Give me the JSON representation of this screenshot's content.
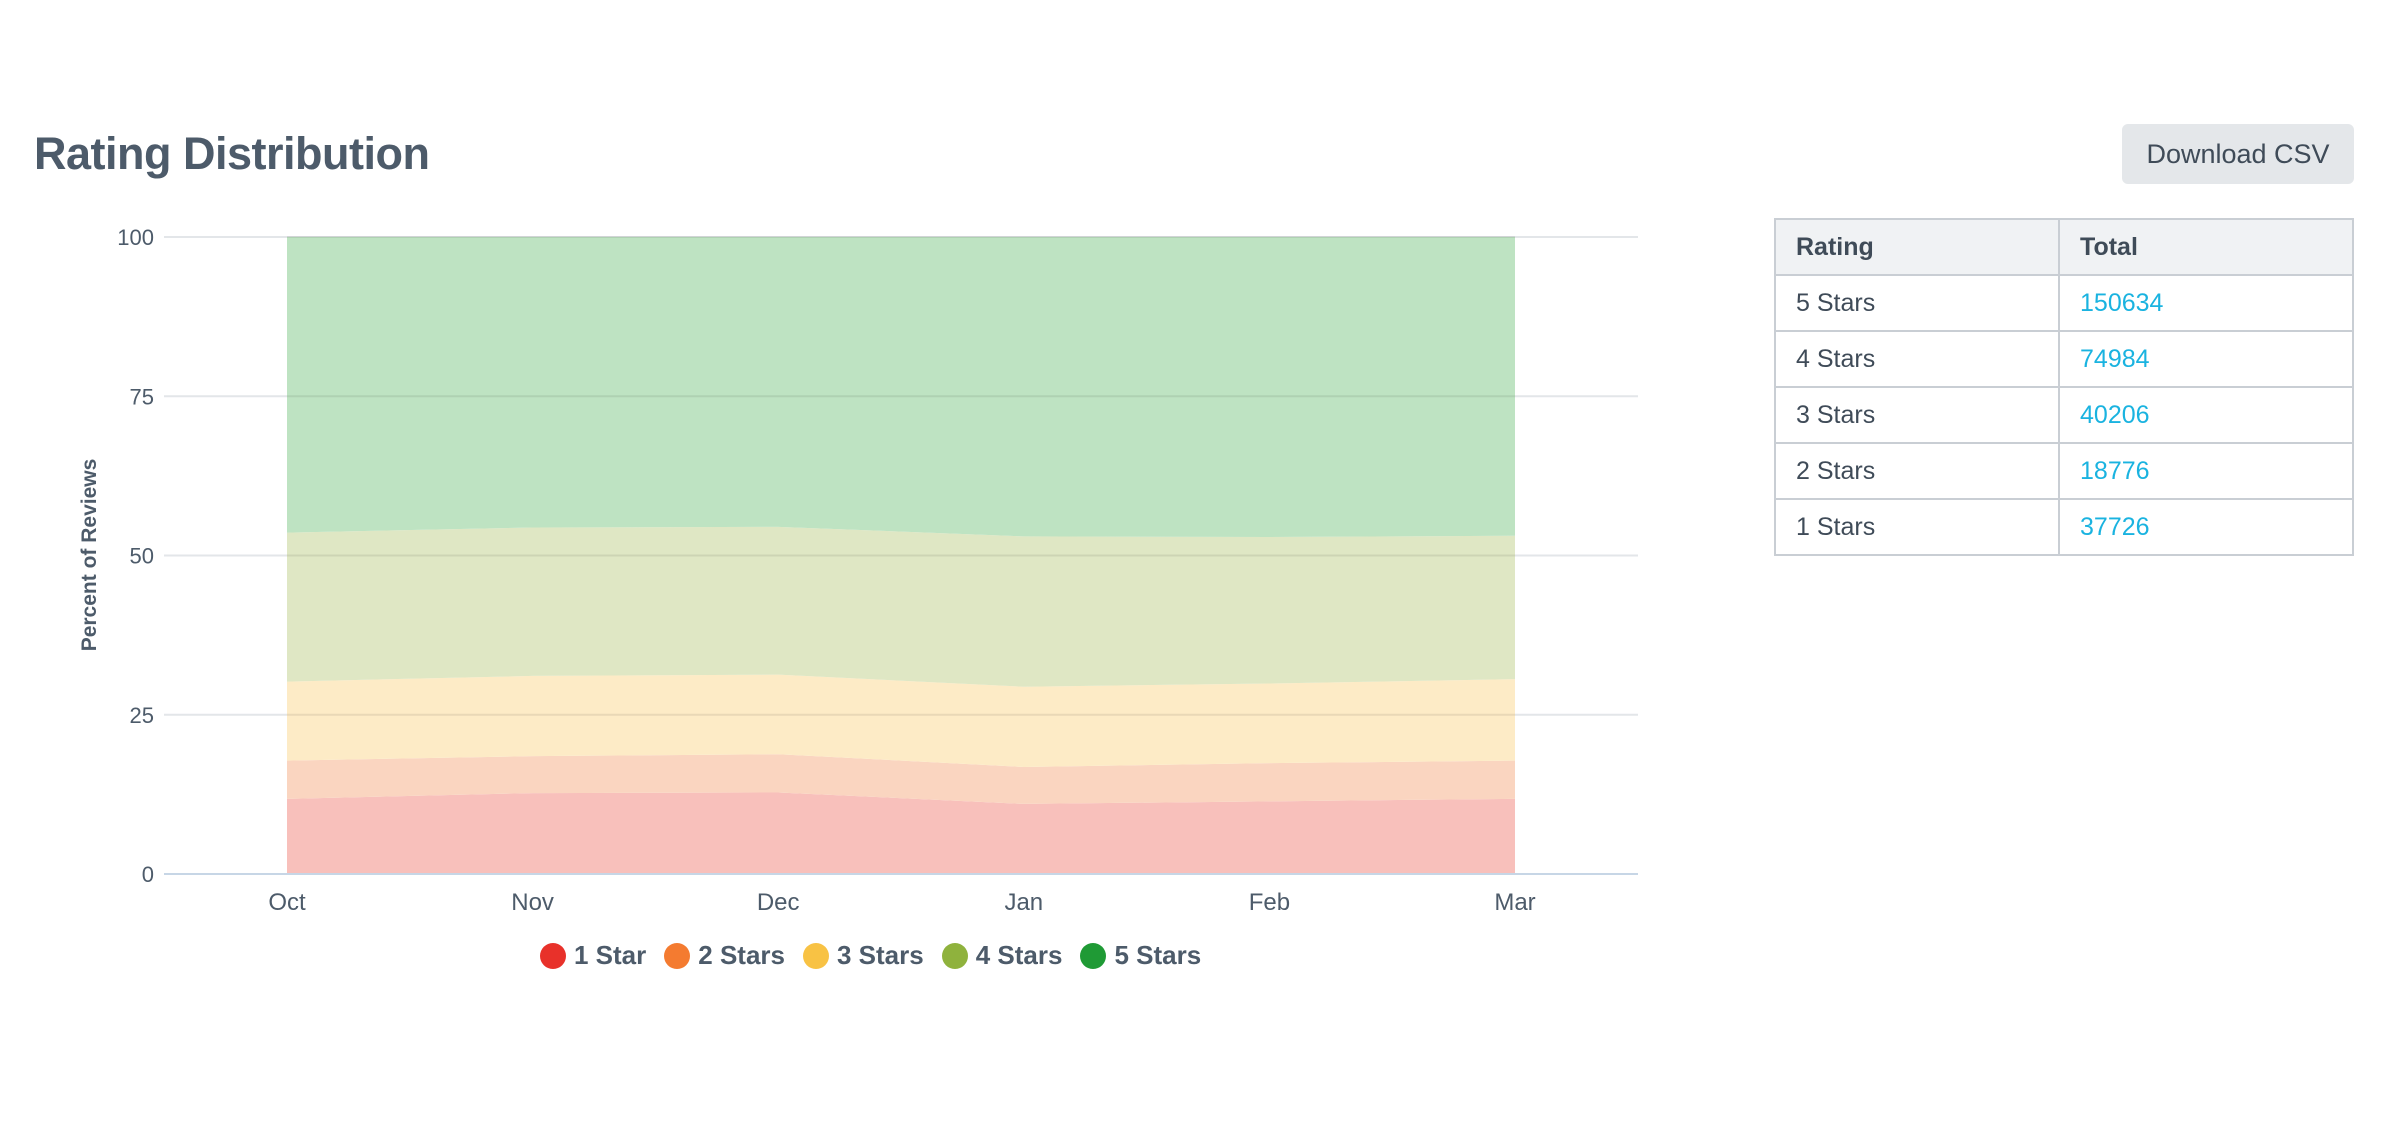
{
  "title": "Rating Distribution",
  "download_label": "Download CSV",
  "table": {
    "headers": [
      "Rating",
      "Total"
    ],
    "rows": [
      {
        "rating": "5 Stars",
        "total": "150634"
      },
      {
        "rating": "4 Stars",
        "total": "74984"
      },
      {
        "rating": "3 Stars",
        "total": "40206"
      },
      {
        "rating": "2 Stars",
        "total": "18776"
      },
      {
        "rating": "1 Stars",
        "total": "37726"
      }
    ]
  },
  "chart_data": {
    "type": "area",
    "stacked": true,
    "ylabel": "Percent of Reviews",
    "xlabel": "",
    "ylim": [
      0,
      100
    ],
    "yticks": [
      0,
      25,
      50,
      75,
      100
    ],
    "grid": true,
    "legend_position": "bottom",
    "categories": [
      "Oct",
      "Nov",
      "Dec",
      "Jan",
      "Feb",
      "Mar"
    ],
    "series": [
      {
        "name": "1 Star",
        "color": "#e8312a",
        "fill": "#f8c0bb",
        "values": [
          11.8,
          12.7,
          12.8,
          11.0,
          11.4,
          11.8
        ]
      },
      {
        "name": "2 Stars",
        "color": "#f47b30",
        "fill": "#fad5c0",
        "values": [
          6.0,
          5.8,
          6.0,
          5.8,
          6.0,
          6.0
        ]
      },
      {
        "name": "3 Stars",
        "color": "#f8c244",
        "fill": "#fdebc6",
        "values": [
          12.4,
          12.6,
          12.5,
          12.6,
          12.5,
          12.8
        ]
      },
      {
        "name": "4 Stars",
        "color": "#8fb23d",
        "fill": "#dfe7c4",
        "values": [
          23.4,
          23.3,
          23.2,
          23.6,
          23.0,
          22.5
        ]
      },
      {
        "name": "5 Stars",
        "color": "#1f9a35",
        "fill": "#bee3c2",
        "values": [
          46.4,
          45.6,
          45.5,
          47.0,
          47.1,
          46.9
        ]
      }
    ]
  }
}
